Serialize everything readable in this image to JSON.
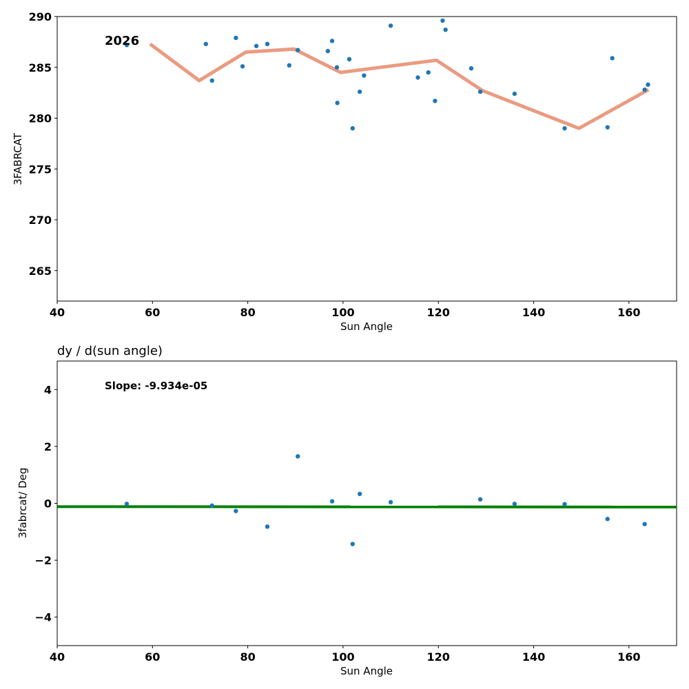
{
  "chart_data": [
    {
      "type": "scatter",
      "title": "",
      "xlabel": "Sun Angle",
      "ylabel": "3FABRCAT",
      "xlim": [
        40,
        170
      ],
      "ylim": [
        262,
        290
      ],
      "xticks": [
        40,
        60,
        80,
        100,
        120,
        140,
        160
      ],
      "yticks": [
        265,
        270,
        275,
        280,
        285,
        290
      ],
      "grid": false,
      "annotation": "2026",
      "colors": {
        "points": "#1f77b4",
        "line": "#e9967a"
      },
      "points": {
        "x": [
          54.6,
          71.2,
          72.5,
          77.5,
          78.9,
          81.8,
          84.1,
          88.7,
          90.5,
          96.8,
          97.7,
          98.7,
          98.8,
          101.3,
          102.0,
          103.5,
          104.4,
          110.0,
          115.7,
          117.9,
          119.3,
          120.9,
          121.5,
          126.9,
          128.8,
          136.0,
          146.5,
          155.5,
          156.5,
          163.3,
          164.0
        ],
        "y": [
          287.2,
          287.3,
          283.7,
          287.9,
          285.1,
          287.1,
          287.3,
          285.2,
          286.7,
          286.6,
          287.6,
          285.0,
          281.5,
          285.8,
          279.0,
          282.6,
          284.2,
          289.1,
          284.0,
          284.5,
          281.7,
          289.6,
          288.7,
          284.9,
          282.6,
          282.4,
          279.0,
          279.1,
          285.9,
          282.8,
          283.3
        ]
      },
      "series": [
        {
          "name": "smoothed",
          "x": [
            59.5,
            69.8,
            79.6,
            89.7,
            99.5,
            119.6,
            129.3,
            149.5,
            164.1
          ],
          "y": [
            287.3,
            283.7,
            286.5,
            286.8,
            284.5,
            285.7,
            282.7,
            279.0,
            282.8
          ]
        }
      ]
    },
    {
      "type": "scatter",
      "title": "dy / d(sun angle)",
      "xlabel": "Sun Angle",
      "ylabel": "3fabrcat/ Deg",
      "xlim": [
        40,
        170
      ],
      "ylim": [
        -5,
        5
      ],
      "xticks": [
        40,
        60,
        80,
        100,
        120,
        140,
        160
      ],
      "yticks": [
        -4,
        -2,
        0,
        2,
        4
      ],
      "ytick_labels": [
        "−4",
        "−2",
        "0",
        "2",
        "4"
      ],
      "grid": false,
      "annotation": "Slope: -9.934e-05",
      "colors": {
        "points": "#1f77b4",
        "line": "#008000"
      },
      "points": {
        "x": [
          54.6,
          72.5,
          77.5,
          84.1,
          90.5,
          97.7,
          102.0,
          103.5,
          110.0,
          128.8,
          136.0,
          146.5,
          155.5,
          163.3
        ],
        "y": [
          -0.02,
          -0.08,
          -0.27,
          -0.82,
          1.65,
          0.07,
          -1.43,
          0.33,
          0.04,
          0.14,
          -0.02,
          -0.03,
          -0.55,
          -0.73
        ]
      },
      "fit_line": {
        "x": [
          40,
          170
        ],
        "y": [
          -0.117,
          -0.13
        ]
      }
    }
  ]
}
